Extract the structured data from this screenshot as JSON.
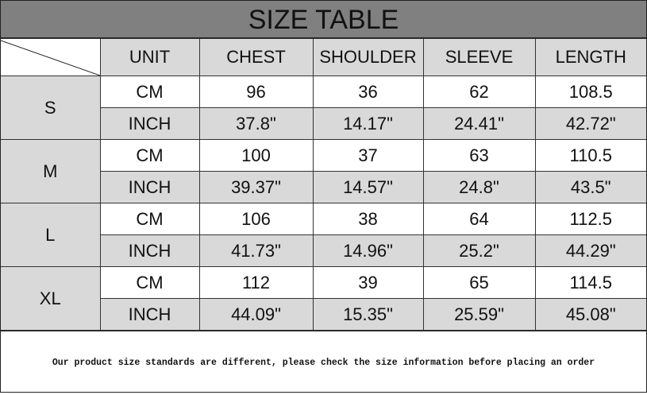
{
  "title": "SIZE TABLE",
  "headers": [
    "UNIT",
    "CHEST",
    "SHOULDER",
    "SLEEVE",
    "LENGTH"
  ],
  "sizes": [
    {
      "size": "S",
      "rows": [
        {
          "unit": "CM",
          "values": [
            "96",
            "36",
            "62",
            "108.5"
          ]
        },
        {
          "unit": "INCH",
          "values": [
            "37.8\"",
            "14.17\"",
            "24.41\"",
            "42.72\""
          ]
        }
      ]
    },
    {
      "size": "M",
      "rows": [
        {
          "unit": "CM",
          "values": [
            "100",
            "37",
            "63",
            "110.5"
          ]
        },
        {
          "unit": "INCH",
          "values": [
            "39.37\"",
            "14.57\"",
            "24.8\"",
            "43.5\""
          ]
        }
      ]
    },
    {
      "size": "L",
      "rows": [
        {
          "unit": "CM",
          "values": [
            "106",
            "38",
            "64",
            "112.5"
          ]
        },
        {
          "unit": "INCH",
          "values": [
            "41.73\"",
            "14.96\"",
            "25.2\"",
            "44.29\""
          ]
        }
      ]
    },
    {
      "size": "XL",
      "rows": [
        {
          "unit": "CM",
          "values": [
            "112",
            "39",
            "65",
            "114.5"
          ]
        },
        {
          "unit": "INCH",
          "values": [
            "44.09\"",
            "15.35\"",
            "25.59\"",
            "45.08\""
          ]
        }
      ]
    }
  ],
  "footer": "Our product size standards are different, please check the size information before placing an order",
  "colors": {
    "title_bg": "#808080",
    "cell_gray": "#d9d9d9"
  }
}
